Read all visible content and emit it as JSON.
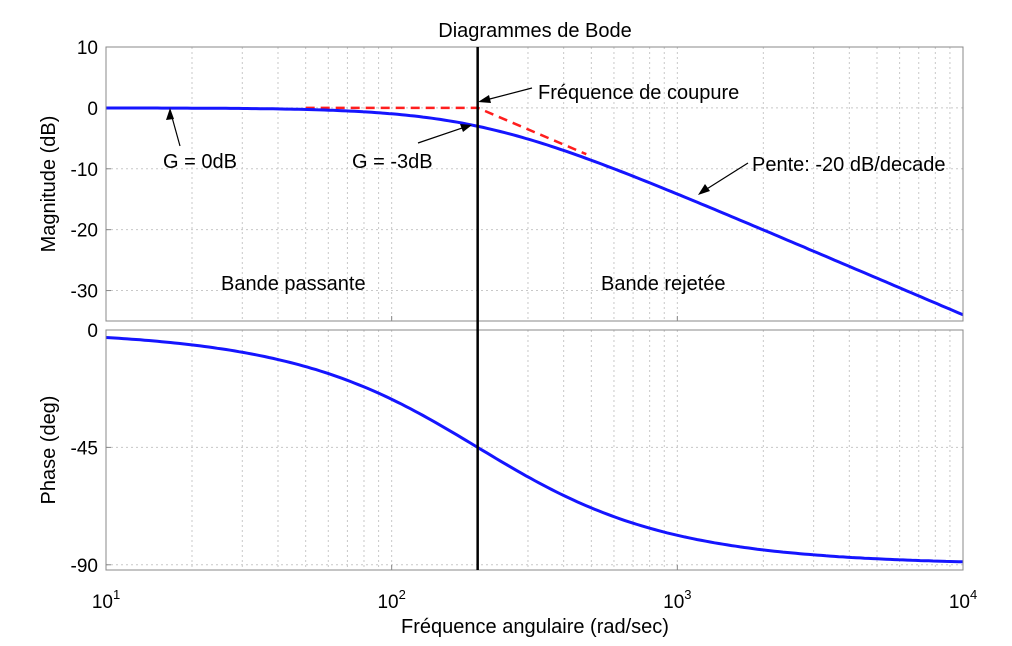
{
  "chart_data": {
    "type": "line",
    "title": "Diagrammes de Bode",
    "xlabel": "Fréquence angulaire  (rad/sec)",
    "x_scale": "log",
    "xlim": [
      10,
      10000
    ],
    "x_ticks": [
      {
        "value": 10,
        "base": "10",
        "exp": "1"
      },
      {
        "value": 100,
        "base": "10",
        "exp": "2"
      },
      {
        "value": 1000,
        "base": "10",
        "exp": "3"
      },
      {
        "value": 10000,
        "base": "10",
        "exp": "4"
      }
    ],
    "cutoff_frequency": 200,
    "grid": true,
    "magnitude": {
      "ylabel": "Magnitude (dB)",
      "ylim": [
        -35,
        10
      ],
      "y_ticks": [
        "10",
        "0",
        "-10",
        "-20",
        "-30"
      ],
      "y_tick_values": [
        10,
        0,
        -10,
        -20,
        -30
      ],
      "x": [
        10,
        20,
        30,
        50,
        70,
        100,
        150,
        200,
        300,
        500,
        700,
        1000,
        2000,
        3000,
        5000,
        7000,
        10000
      ],
      "values": [
        -0.11,
        -0.41,
        -0.9,
        -0.26,
        -0.5,
        -0.97,
        -1.94,
        -3.01,
        -5.12,
        -8.6,
        -11.2,
        -14.2,
        -20.1,
        -23.6,
        -28.0,
        -30.9,
        -34.0
      ],
      "asymptote": {
        "x": [
          50,
          200,
          480
        ],
        "values": [
          0,
          0,
          -7.6
        ]
      }
    },
    "phase": {
      "ylabel": "Phase (deg)",
      "ylim": [
        -92,
        0
      ],
      "y_ticks": [
        "0",
        "-45",
        "-90"
      ],
      "y_tick_values": [
        0,
        -45,
        -90
      ],
      "x": [
        10,
        20,
        30,
        50,
        70,
        100,
        150,
        200,
        300,
        500,
        700,
        1000,
        2000,
        3000,
        5000,
        7000,
        10000
      ],
      "values": [
        -2.9,
        -5.7,
        -8.5,
        -14.0,
        -19.3,
        -26.6,
        -36.9,
        -45.0,
        -56.3,
        -68.2,
        -74.1,
        -78.7,
        -84.3,
        -86.2,
        -87.7,
        -88.4,
        -88.9
      ]
    },
    "annotations": {
      "g0": "G = 0dB",
      "g3": "G = -3dB",
      "cutoff": "Fréquence de coupure",
      "slope": "Pente: -20 dB/decade",
      "passband": "Bande passante",
      "stopband": "Bande rejetée"
    }
  }
}
